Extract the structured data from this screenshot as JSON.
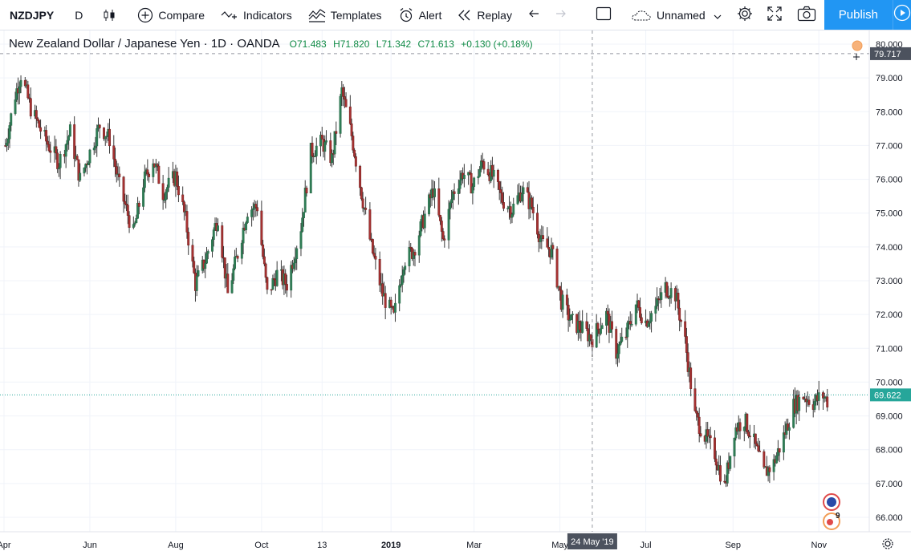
{
  "toolbar": {
    "symbol": "NZDJPY",
    "interval": "D",
    "compare_label": "Compare",
    "indicators_label": "Indicators",
    "templates_label": "Templates",
    "alert_label": "Alert",
    "replay_label": "Replay",
    "layout_name": "Unnamed",
    "publish_label": "Publish"
  },
  "legend": {
    "title": "New Zealand Dollar / Japanese Yen · 1D · OANDA",
    "open": "O71.483",
    "high": "H71.820",
    "low": "L71.342",
    "close": "C71.613",
    "change": "+0.130 (+0.18%)"
  },
  "crosshair": {
    "price_label": "79.717",
    "date_label": "24 May '19"
  },
  "last_price_label": "69.622",
  "colors": {
    "up": "#26a69a",
    "down": "#ef5350",
    "up_body": "#2e7d55",
    "down_body": "#a83232",
    "accent": "#2196f3"
  },
  "icons": {
    "bars_style": "candles-icon",
    "compare": "plus-circle-icon",
    "indicators": "indicators-icon",
    "templates": "templates-icon",
    "alert": "alarm-clock-icon",
    "replay": "rewind-icon",
    "undo": "undo-icon",
    "redo": "redo-icon",
    "select": "square-icon",
    "cloud": "cloud-icon",
    "settings": "gear-icon",
    "fullscreen": "fullscreen-icon",
    "snapshot": "camera-icon",
    "play": "play-icon",
    "chart_settings": "gear-icon"
  },
  "chart_data": {
    "type": "candlestick",
    "symbol": "NZDJPY",
    "timeframe": "1D",
    "price_axis": {
      "ticks": [
        "80.000",
        "79.000",
        "78.000",
        "77.000",
        "76.000",
        "75.000",
        "74.000",
        "73.000",
        "72.000",
        "71.000",
        "70.000",
        "69.000",
        "68.000",
        "67.000",
        "66.000"
      ],
      "range": [
        65.6,
        80.3
      ]
    },
    "time_axis": {
      "ticks": [
        "Apr",
        "Jun",
        "Aug",
        "Oct",
        "13",
        "2019",
        "Mar",
        "May",
        "Jul",
        "Sep",
        "Nov"
      ]
    },
    "close_path": [
      [
        "2018-04-02",
        77.0
      ],
      [
        "2018-04-09",
        78.5
      ],
      [
        "2018-04-13",
        79.1
      ],
      [
        "2018-04-20",
        78.1
      ],
      [
        "2018-04-30",
        77.2
      ],
      [
        "2018-05-10",
        76.5
      ],
      [
        "2018-05-18",
        77.4
      ],
      [
        "2018-05-25",
        76.0
      ],
      [
        "2018-06-01",
        76.8
      ],
      [
        "2018-06-08",
        77.6
      ],
      [
        "2018-06-15",
        77.2
      ],
      [
        "2018-06-22",
        75.8
      ],
      [
        "2018-07-02",
        74.4
      ],
      [
        "2018-07-09",
        75.9
      ],
      [
        "2018-07-16",
        76.6
      ],
      [
        "2018-07-23",
        75.6
      ],
      [
        "2018-08-01",
        76.1
      ],
      [
        "2018-08-08",
        74.8
      ],
      [
        "2018-08-15",
        72.9
      ],
      [
        "2018-08-22",
        73.6
      ],
      [
        "2018-08-31",
        74.9
      ],
      [
        "2018-09-07",
        72.6
      ],
      [
        "2018-09-14",
        73.8
      ],
      [
        "2018-09-21",
        75.1
      ],
      [
        "2018-09-28",
        75.2
      ],
      [
        "2018-10-05",
        72.6
      ],
      [
        "2018-10-12",
        73.2
      ],
      [
        "2018-10-19",
        72.9
      ],
      [
        "2018-10-29",
        74.6
      ],
      [
        "2018-11-05",
        76.8
      ],
      [
        "2018-11-13",
        77.1
      ],
      [
        "2018-11-20",
        76.6
      ],
      [
        "2018-11-27",
        78.6
      ],
      [
        "2018-12-04",
        77.3
      ],
      [
        "2018-12-11",
        75.6
      ],
      [
        "2018-12-18",
        74.0
      ],
      [
        "2018-12-26",
        72.6
      ],
      [
        "2019-01-03",
        71.9
      ],
      [
        "2019-01-10",
        73.6
      ],
      [
        "2019-01-17",
        73.9
      ],
      [
        "2019-01-24",
        74.8
      ],
      [
        "2019-01-31",
        75.7
      ],
      [
        "2019-02-07",
        74.2
      ],
      [
        "2019-02-14",
        75.6
      ],
      [
        "2019-02-21",
        76.2
      ],
      [
        "2019-02-28",
        75.8
      ],
      [
        "2019-03-07",
        76.5
      ],
      [
        "2019-03-14",
        76.1
      ],
      [
        "2019-03-21",
        75.4
      ],
      [
        "2019-03-28",
        75.1
      ],
      [
        "2019-04-04",
        75.7
      ],
      [
        "2019-04-11",
        75.2
      ],
      [
        "2019-04-18",
        74.1
      ],
      [
        "2019-04-25",
        73.9
      ],
      [
        "2019-05-02",
        72.4
      ],
      [
        "2019-05-09",
        71.8
      ],
      [
        "2019-05-16",
        71.6
      ],
      [
        "2019-05-24",
        71.3
      ],
      [
        "2019-06-03",
        72.0
      ],
      [
        "2019-06-10",
        70.9
      ],
      [
        "2019-06-17",
        71.4
      ],
      [
        "2019-06-24",
        72.3
      ],
      [
        "2019-07-01",
        71.8
      ],
      [
        "2019-07-08",
        72.2
      ],
      [
        "2019-07-15",
        72.8
      ],
      [
        "2019-07-22",
        72.6
      ],
      [
        "2019-07-29",
        71.2
      ],
      [
        "2019-08-05",
        69.0
      ],
      [
        "2019-08-12",
        68.4
      ],
      [
        "2019-08-19",
        67.9
      ],
      [
        "2019-08-26",
        66.9
      ],
      [
        "2019-09-02",
        68.6
      ],
      [
        "2019-09-09",
        68.9
      ],
      [
        "2019-09-16",
        68.2
      ],
      [
        "2019-09-23",
        67.3
      ],
      [
        "2019-09-30",
        67.6
      ],
      [
        "2019-10-07",
        68.4
      ],
      [
        "2019-10-14",
        69.3
      ],
      [
        "2019-10-21",
        69.6
      ],
      [
        "2019-10-28",
        69.4
      ],
      [
        "2019-11-04",
        69.6
      ],
      [
        "2019-11-08",
        69.4
      ]
    ],
    "last_price": 69.622,
    "crosshair_price": 79.717,
    "crosshair_date": "24 May '19",
    "grid": true
  }
}
